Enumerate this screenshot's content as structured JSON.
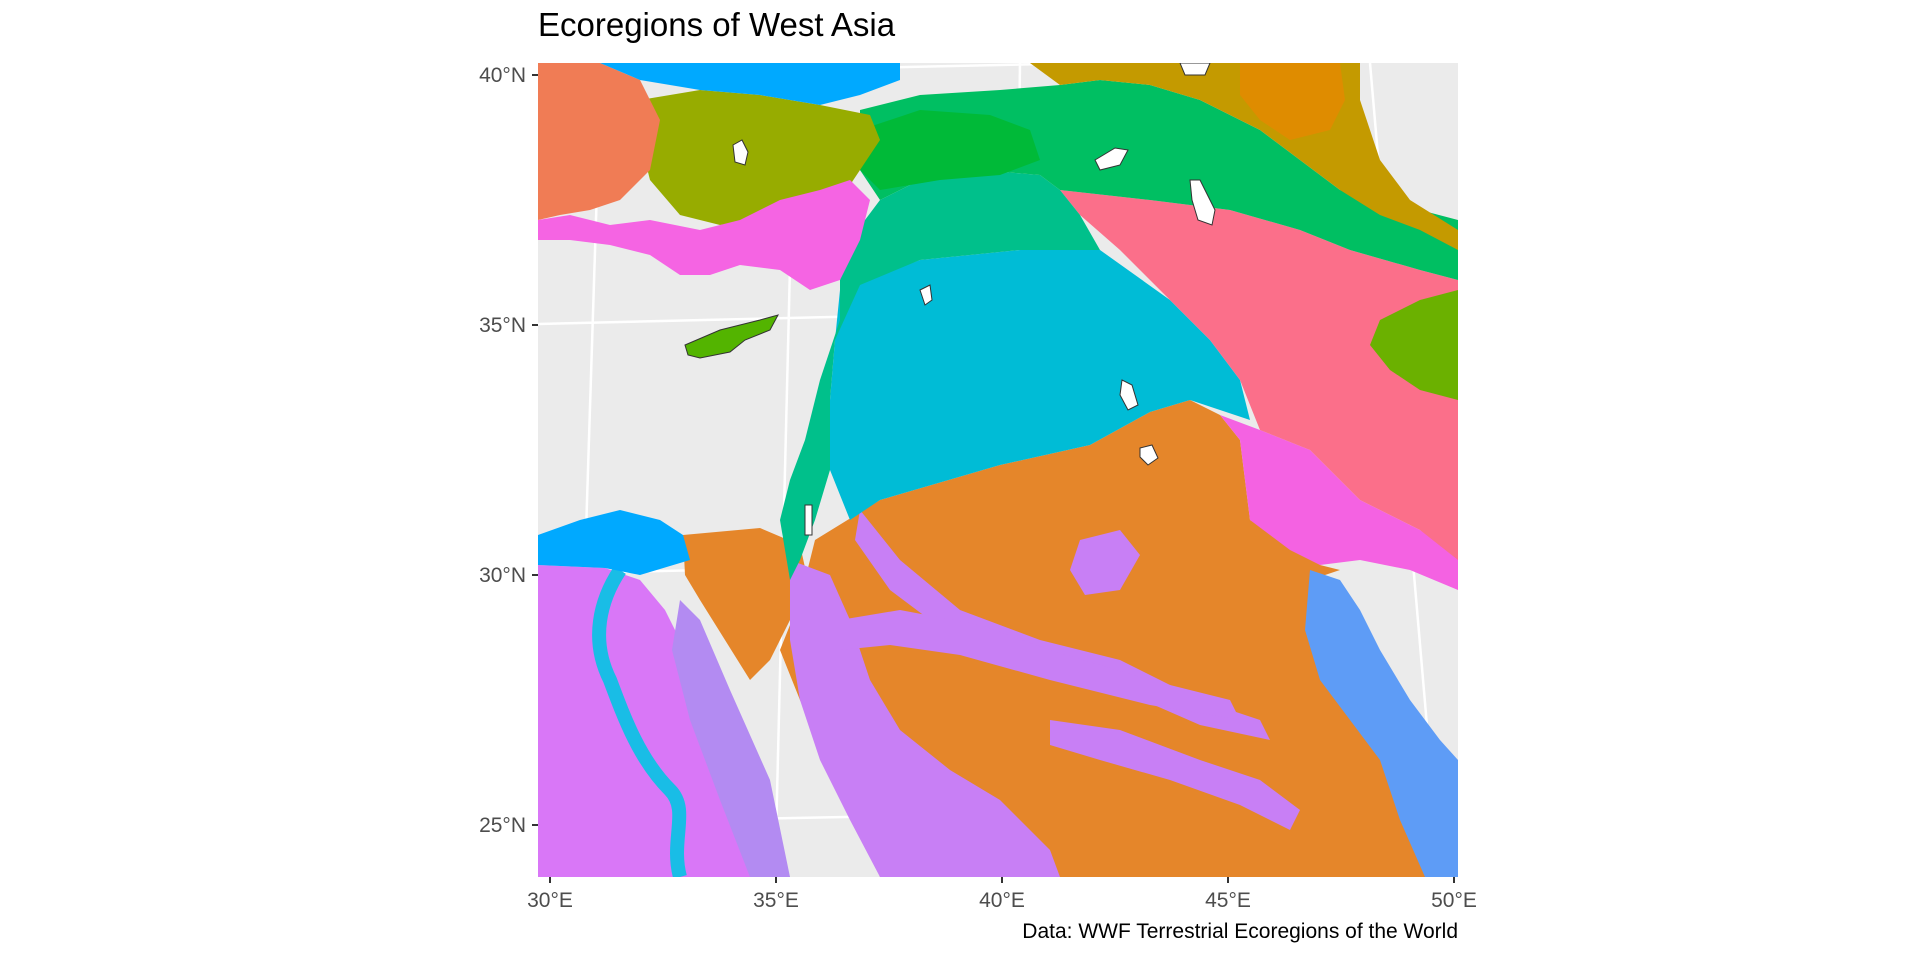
{
  "title": "Ecoregions of West Asia",
  "caption": "Data: WWF Terrestrial Ecoregions of the World",
  "axes": {
    "x_ticks": [
      {
        "label": "30°E",
        "lon": 30
      },
      {
        "label": "35°E",
        "lon": 35
      },
      {
        "label": "40°E",
        "lon": 40
      },
      {
        "label": "45°E",
        "lon": 45
      },
      {
        "label": "50°E",
        "lon": 50
      }
    ],
    "y_ticks": [
      {
        "label": "40°N",
        "lat": 40
      },
      {
        "label": "35°N",
        "lat": 35
      },
      {
        "label": "30°N",
        "lat": 30
      },
      {
        "label": "25°N",
        "lat": 25
      }
    ]
  },
  "colors": {
    "panel_background": "#ebebeb",
    "graticule": "#ffffff",
    "tick_text": "#4d4d4d",
    "coast_outline": "#333333"
  }
}
